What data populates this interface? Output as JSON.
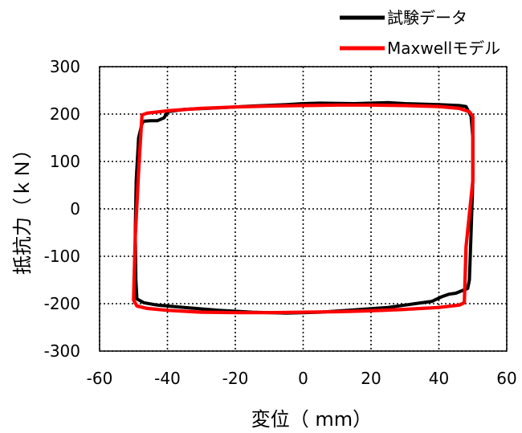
{
  "chart_data": {
    "type": "line",
    "xlabel": "変位（ mm）",
    "ylabel": "抵抗力（ｋＮ）",
    "xlim": [
      -60,
      60
    ],
    "ylim": [
      -300,
      300
    ],
    "x_ticks": [
      "-60",
      "-40",
      "-20",
      "0",
      "20",
      "40",
      "60"
    ],
    "y_ticks": [
      "300",
      "200",
      "100",
      "0",
      "-100",
      "-200",
      "-300"
    ],
    "grid": "dotted",
    "legend_position": "top-right",
    "series": [
      {
        "name": "試験データ",
        "color": "#000000",
        "points": [
          [
            -47,
            185
          ],
          [
            -45,
            186
          ],
          [
            -43,
            186
          ],
          [
            -41,
            192
          ],
          [
            -40,
            205
          ],
          [
            -35,
            210
          ],
          [
            -25,
            213
          ],
          [
            -15,
            217
          ],
          [
            -5,
            220
          ],
          [
            0,
            222
          ],
          [
            5,
            223
          ],
          [
            15,
            222
          ],
          [
            25,
            224
          ],
          [
            30,
            222
          ],
          [
            40,
            220
          ],
          [
            46,
            218
          ],
          [
            48,
            216
          ],
          [
            49.5,
            195
          ],
          [
            50,
            150
          ],
          [
            50,
            60
          ],
          [
            49.5,
            -50
          ],
          [
            49,
            -150
          ],
          [
            48.5,
            -168
          ],
          [
            47,
            -172
          ],
          [
            45,
            -178
          ],
          [
            43,
            -180
          ],
          [
            41,
            -185
          ],
          [
            38,
            -195
          ],
          [
            33,
            -200
          ],
          [
            25,
            -208
          ],
          [
            15,
            -213
          ],
          [
            5,
            -218
          ],
          [
            -5,
            -220
          ],
          [
            -15,
            -218
          ],
          [
            -25,
            -214
          ],
          [
            -35,
            -208
          ],
          [
            -43,
            -203
          ],
          [
            -47,
            -198
          ],
          [
            -49,
            -190
          ],
          [
            -49.3,
            -150
          ],
          [
            -49.5,
            -50
          ],
          [
            -49.2,
            60
          ],
          [
            -48.5,
            150
          ],
          [
            -47.5,
            180
          ],
          [
            -47,
            185
          ]
        ]
      },
      {
        "name": "Maxwellモデル",
        "color": "#ff0000",
        "points": [
          [
            -47.5,
            198
          ],
          [
            -46,
            202
          ],
          [
            -40,
            207
          ],
          [
            -30,
            212
          ],
          [
            -20,
            215
          ],
          [
            -10,
            217
          ],
          [
            0,
            218
          ],
          [
            10,
            219
          ],
          [
            20,
            219
          ],
          [
            30,
            218
          ],
          [
            40,
            216
          ],
          [
            46,
            212
          ],
          [
            49,
            205
          ],
          [
            50,
            195
          ],
          [
            50,
            60
          ],
          [
            48,
            -80
          ],
          [
            47.5,
            -198
          ],
          [
            46,
            -203
          ],
          [
            40,
            -208
          ],
          [
            30,
            -212
          ],
          [
            20,
            -215
          ],
          [
            10,
            -217
          ],
          [
            0,
            -218
          ],
          [
            -10,
            -219
          ],
          [
            -20,
            -219
          ],
          [
            -30,
            -218
          ],
          [
            -40,
            -214
          ],
          [
            -46,
            -210
          ],
          [
            -49,
            -205
          ],
          [
            -50,
            -192
          ],
          [
            -49.5,
            -60
          ],
          [
            -48.5,
            80
          ],
          [
            -47.5,
            198
          ]
        ]
      }
    ]
  }
}
